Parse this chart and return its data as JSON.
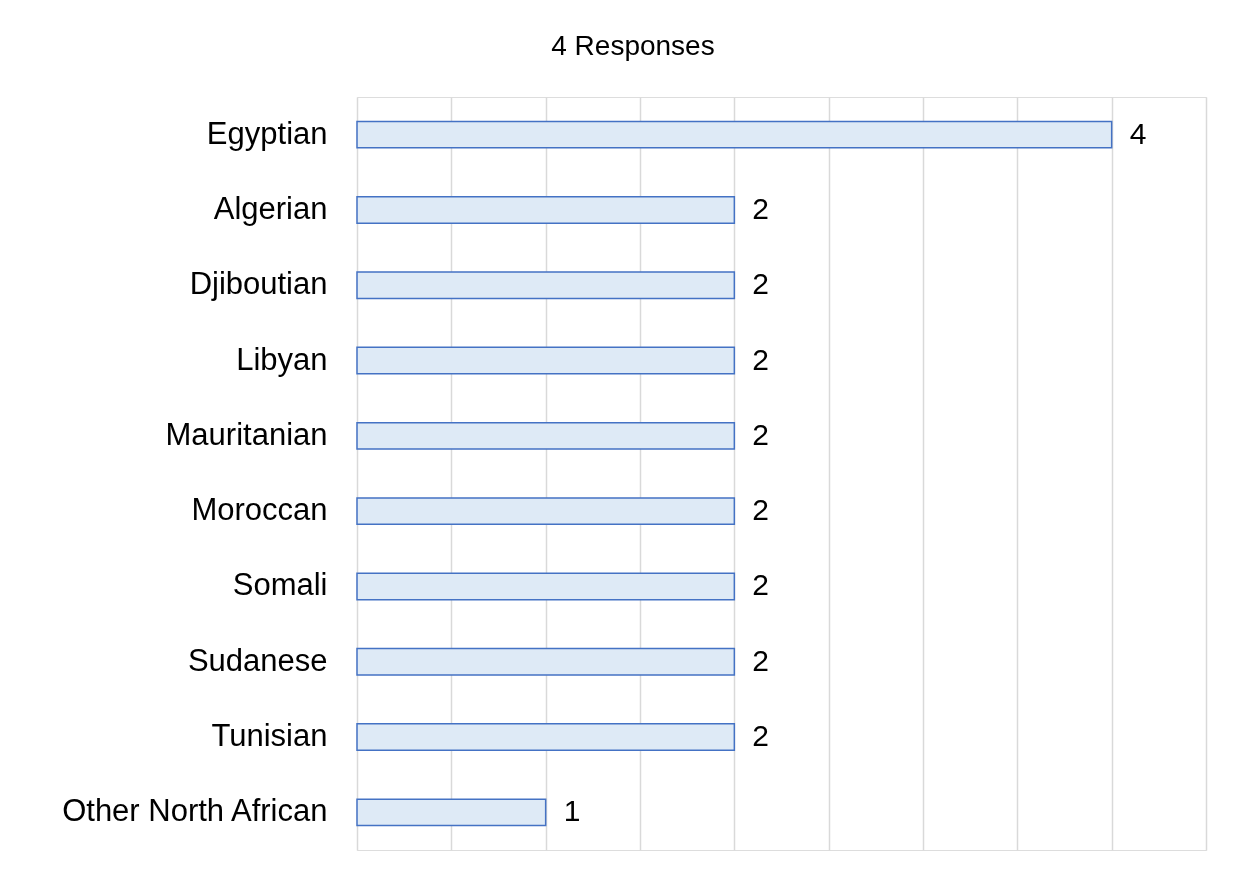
{
  "chart_data": {
    "type": "bar",
    "orientation": "horizontal",
    "title": "4 Responses",
    "categories": [
      "Egyptian",
      "Algerian",
      "Djiboutian",
      "Libyan",
      "Mauritanian",
      "Moroccan",
      "Somali",
      "Sudanese",
      "Tunisian",
      "Other North African"
    ],
    "values": [
      4,
      2,
      2,
      2,
      2,
      2,
      2,
      2,
      2,
      1
    ],
    "color": "#deeaf6",
    "xlim": [
      0,
      4.5
    ],
    "xticks": [
      {
        "value": 0,
        "label": null
      },
      {
        "value": 0.5,
        "label": null
      },
      {
        "value": 1,
        "label": null
      },
      {
        "value": 1.5,
        "label": null
      },
      {
        "value": 2,
        "label": null
      },
      {
        "value": 2.5,
        "label": null
      },
      {
        "value": 3,
        "label": null
      },
      {
        "value": 3.5,
        "label": null
      },
      {
        "value": 4,
        "label": null
      },
      {
        "value": 4.5,
        "label": null
      }
    ],
    "grid": "x",
    "tick_labels": "y",
    "data_labels": true
  }
}
